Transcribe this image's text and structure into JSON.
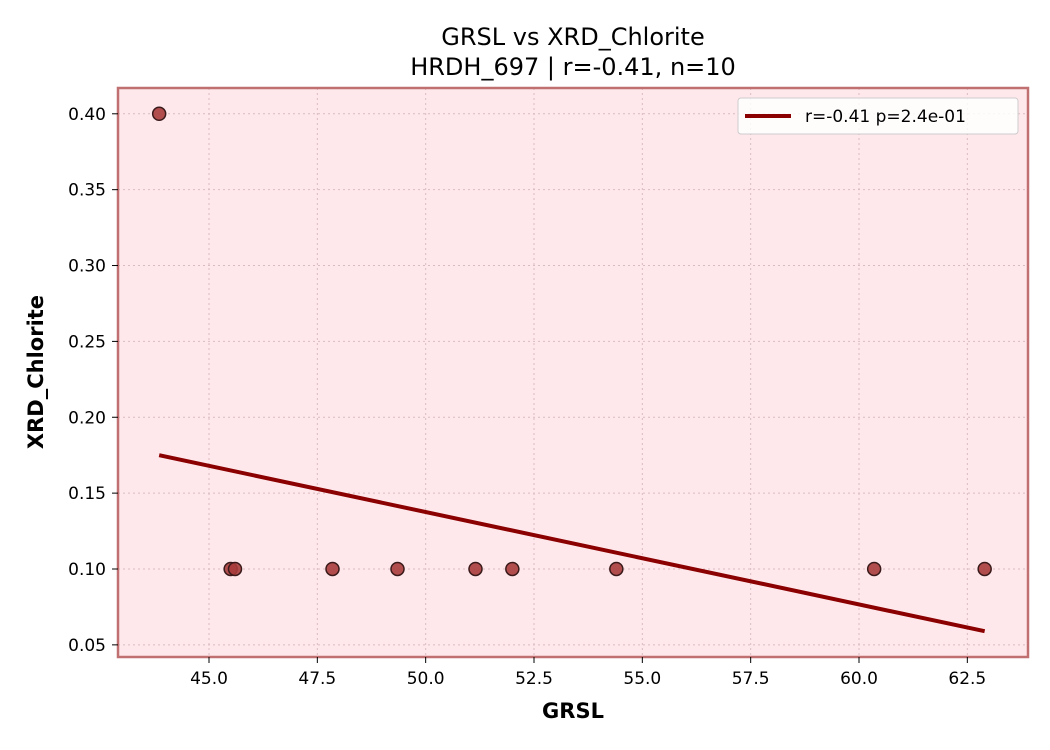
{
  "chart_data": {
    "type": "scatter",
    "title": "GRSL vs XRD_Chlorite",
    "subtitle": "HRDH_697 | r=-0.41, n=10",
    "xlabel": "GRSL",
    "ylabel": "XRD_Chlorite",
    "xlim": [
      42.9,
      63.9
    ],
    "ylim": [
      0.042,
      0.417
    ],
    "xticks": [
      45.0,
      47.5,
      50.0,
      52.5,
      55.0,
      57.5,
      60.0,
      62.5
    ],
    "xtick_labels": [
      "45.0",
      "47.5",
      "50.0",
      "52.5",
      "55.0",
      "57.5",
      "60.0",
      "62.5"
    ],
    "yticks": [
      0.05,
      0.1,
      0.15,
      0.2,
      0.25,
      0.3,
      0.35,
      0.4
    ],
    "ytick_labels": [
      "0.05",
      "0.10",
      "0.15",
      "0.20",
      "0.25",
      "0.30",
      "0.35",
      "0.40"
    ],
    "grid": true,
    "legend_position": "top-right",
    "points": {
      "x": [
        43.85,
        45.5,
        45.6,
        47.85,
        49.35,
        51.15,
        52.0,
        54.4,
        60.35,
        62.9
      ],
      "y": [
        0.4,
        0.1,
        0.1,
        0.1,
        0.1,
        0.1,
        0.1,
        0.1,
        0.1,
        0.1
      ]
    },
    "fit_line": {
      "name": "r=-0.41  p=2.4e-01",
      "x": [
        43.85,
        62.9
      ],
      "y": [
        0.175,
        0.059
      ]
    },
    "colors": {
      "background": "#ffe8eb",
      "frame": "#c07070",
      "point_fill": "#a83c3c",
      "point_edge": "#3a1a1a",
      "line": "#8b0000",
      "grid": "#d9bcc0"
    }
  }
}
